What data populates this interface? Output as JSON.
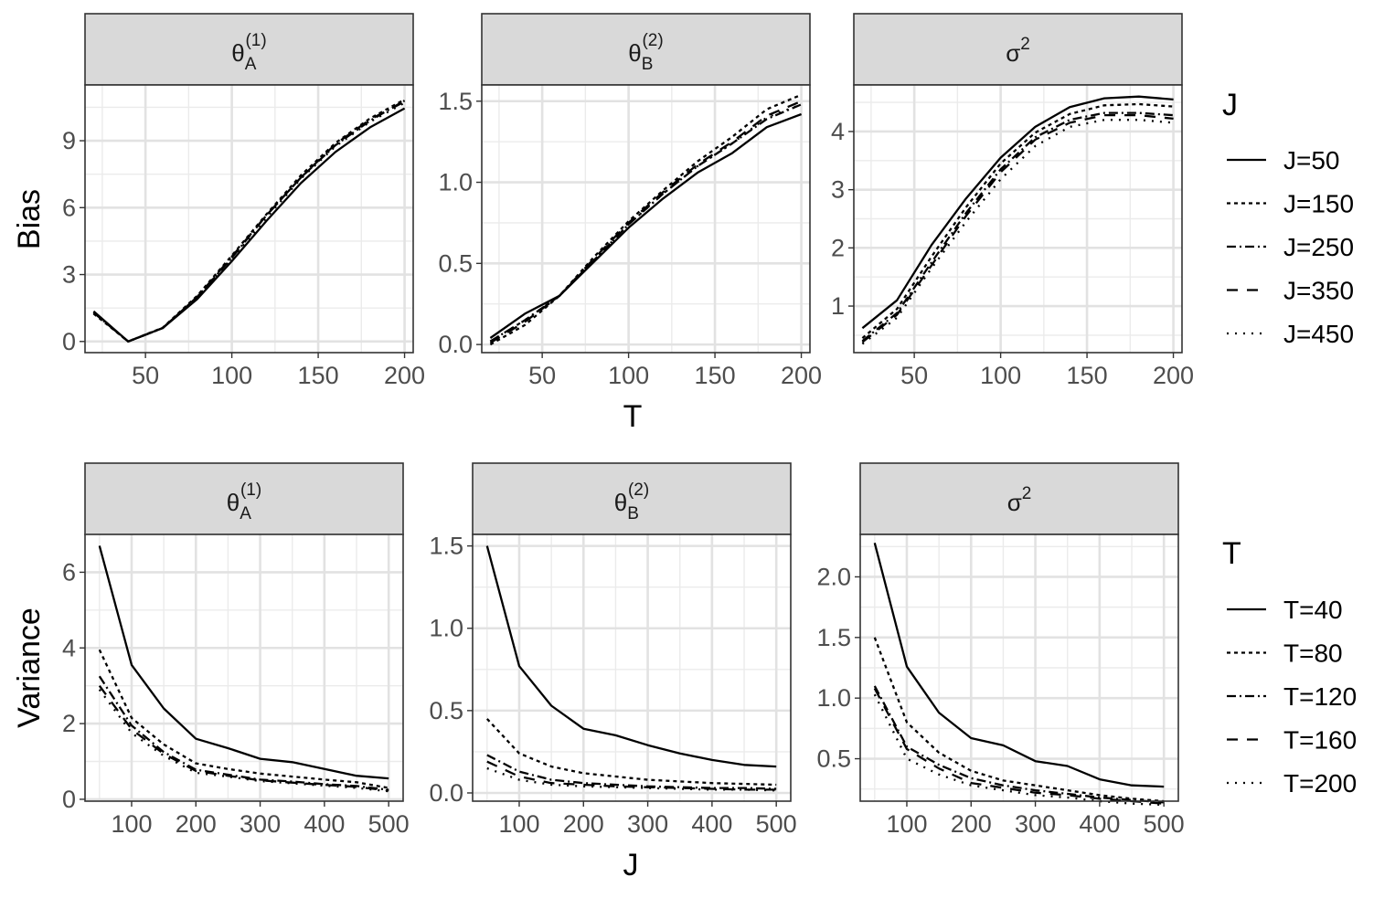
{
  "chart_data": [
    {
      "type": "line",
      "row_ylabel": "Bias",
      "xlabel": "T",
      "legend": {
        "title": "J",
        "placement": "right",
        "entries": [
          "J=50",
          "J=150",
          "J=250",
          "J=350",
          "J=450"
        ]
      },
      "grid": true,
      "panels": [
        {
          "strip": {
            "base": "θ",
            "sub": "A",
            "sup": "(1)"
          },
          "x": [
            20,
            40,
            60,
            80,
            100,
            120,
            140,
            160,
            180,
            200
          ],
          "xlim": [
            15,
            205
          ],
          "xticks": [
            "50",
            "100",
            "150",
            "200"
          ],
          "xtick_values": [
            50,
            100,
            150,
            200
          ],
          "ylim": [
            -0.5,
            11.5
          ],
          "yticks": [
            "0",
            "3",
            "6",
            "9"
          ],
          "ytick_values": [
            0,
            3,
            6,
            9
          ],
          "series": [
            {
              "name": "J=50",
              "values": [
                1.35,
                0.0,
                0.6,
                1.9,
                3.6,
                5.4,
                7.1,
                8.5,
                9.6,
                10.45
              ]
            },
            {
              "name": "J=150",
              "values": [
                1.25,
                0.0,
                0.62,
                2.05,
                3.85,
                5.7,
                7.45,
                8.9,
                10.0,
                10.85
              ]
            },
            {
              "name": "J=250",
              "values": [
                1.3,
                0.0,
                0.6,
                2.0,
                3.75,
                5.65,
                7.35,
                8.8,
                9.9,
                10.8
              ]
            },
            {
              "name": "J=350",
              "values": [
                1.3,
                0.0,
                0.6,
                2.0,
                3.8,
                5.65,
                7.35,
                8.85,
                9.95,
                10.75
              ]
            },
            {
              "name": "J=450",
              "values": [
                1.3,
                0.0,
                0.6,
                1.95,
                3.7,
                5.55,
                7.3,
                8.75,
                9.85,
                10.7
              ]
            }
          ]
        },
        {
          "strip": {
            "base": "θ",
            "sub": "B",
            "sup": "(2)"
          },
          "x": [
            20,
            40,
            60,
            80,
            100,
            120,
            140,
            160,
            180,
            200
          ],
          "xlim": [
            15,
            205
          ],
          "xticks": [
            "50",
            "100",
            "150",
            "200"
          ],
          "xtick_values": [
            50,
            100,
            150,
            200
          ],
          "ylim": [
            -0.05,
            1.6
          ],
          "yticks": [
            "0.0",
            "0.5",
            "1.0",
            "1.5"
          ],
          "ytick_values": [
            0,
            0.5,
            1.0,
            1.5
          ],
          "series": [
            {
              "name": "J=50",
              "values": [
                0.04,
                0.19,
                0.3,
                0.51,
                0.72,
                0.9,
                1.06,
                1.18,
                1.34,
                1.42
              ]
            },
            {
              "name": "J=150",
              "values": [
                0.0,
                0.12,
                0.3,
                0.54,
                0.76,
                0.95,
                1.13,
                1.28,
                1.45,
                1.54
              ]
            },
            {
              "name": "J=250",
              "values": [
                0.02,
                0.15,
                0.3,
                0.52,
                0.74,
                0.93,
                1.1,
                1.24,
                1.39,
                1.48
              ]
            },
            {
              "name": "J=350",
              "values": [
                0.01,
                0.14,
                0.3,
                0.53,
                0.75,
                0.94,
                1.11,
                1.25,
                1.41,
                1.5
              ]
            },
            {
              "name": "J=450",
              "values": [
                0.02,
                0.15,
                0.3,
                0.52,
                0.74,
                0.93,
                1.1,
                1.24,
                1.4,
                1.48
              ]
            }
          ]
        },
        {
          "strip": {
            "base": "σ",
            "sub": "",
            "sup": "2"
          },
          "x": [
            20,
            40,
            60,
            80,
            100,
            120,
            140,
            160,
            180,
            200
          ],
          "xlim": [
            15,
            205
          ],
          "xticks": [
            "50",
            "100",
            "150",
            "200"
          ],
          "xtick_values": [
            50,
            100,
            150,
            200
          ],
          "ylim": [
            0.2,
            4.8
          ],
          "yticks": [
            "1",
            "2",
            "3",
            "4"
          ],
          "ytick_values": [
            1,
            2,
            3,
            4
          ],
          "series": [
            {
              "name": "J=50",
              "values": [
                0.62,
                1.1,
                2.05,
                2.85,
                3.55,
                4.08,
                4.42,
                4.57,
                4.6,
                4.55
              ]
            },
            {
              "name": "J=150",
              "values": [
                0.45,
                0.95,
                1.85,
                2.7,
                3.45,
                3.98,
                4.3,
                4.45,
                4.47,
                4.43
              ]
            },
            {
              "name": "J=250",
              "values": [
                0.4,
                0.88,
                1.75,
                2.6,
                3.35,
                3.9,
                4.2,
                4.32,
                4.32,
                4.28
              ]
            },
            {
              "name": "J=350",
              "values": [
                0.38,
                0.85,
                1.7,
                2.55,
                3.3,
                3.86,
                4.15,
                4.28,
                4.28,
                4.22
              ]
            },
            {
              "name": "J=450",
              "values": [
                0.35,
                0.8,
                1.65,
                2.45,
                3.18,
                3.75,
                4.08,
                4.2,
                4.2,
                4.15
              ]
            }
          ]
        }
      ]
    },
    {
      "type": "line",
      "row_ylabel": "Variance",
      "xlabel": "J",
      "legend": {
        "title": "T",
        "placement": "right",
        "entries": [
          "T=40",
          "T=80",
          "T=120",
          "T=160",
          "T=200"
        ]
      },
      "grid": true,
      "panels": [
        {
          "strip": {
            "base": "θ",
            "sub": "A",
            "sup": "(1)"
          },
          "x": [
            50,
            100,
            150,
            200,
            250,
            300,
            350,
            400,
            450,
            500
          ],
          "xlim": [
            27.5,
            522.5
          ],
          "xticks": [
            "100",
            "200",
            "300",
            "400",
            "500"
          ],
          "xtick_values": [
            100,
            200,
            300,
            400,
            500
          ],
          "ylim": [
            -0.05,
            7.0
          ],
          "yticks": [
            "0",
            "2",
            "4",
            "6"
          ],
          "ytick_values": [
            0,
            2,
            4,
            6
          ],
          "series": [
            {
              "name": "T=40",
              "values": [
                6.7,
                3.55,
                2.4,
                1.6,
                1.35,
                1.07,
                0.98,
                0.8,
                0.62,
                0.55
              ]
            },
            {
              "name": "T=80",
              "values": [
                3.95,
                2.15,
                1.45,
                0.95,
                0.8,
                0.68,
                0.6,
                0.52,
                0.45,
                0.3
              ]
            },
            {
              "name": "T=120",
              "values": [
                3.25,
                1.95,
                1.25,
                0.78,
                0.65,
                0.52,
                0.47,
                0.4,
                0.35,
                0.25
              ]
            },
            {
              "name": "T=160",
              "values": [
                3.0,
                1.85,
                1.2,
                0.75,
                0.62,
                0.5,
                0.44,
                0.38,
                0.33,
                0.23
              ]
            },
            {
              "name": "T=200",
              "values": [
                2.9,
                1.75,
                1.15,
                0.7,
                0.6,
                0.48,
                0.42,
                0.36,
                0.3,
                0.21
              ]
            }
          ]
        },
        {
          "strip": {
            "base": "θ",
            "sub": "B",
            "sup": "(2)"
          },
          "x": [
            50,
            100,
            150,
            200,
            250,
            300,
            350,
            400,
            450,
            500
          ],
          "xlim": [
            27.5,
            522.5
          ],
          "xticks": [
            "100",
            "200",
            "300",
            "400",
            "500"
          ],
          "xtick_values": [
            100,
            200,
            300,
            400,
            500
          ],
          "ylim": [
            -0.05,
            1.57
          ],
          "yticks": [
            "0.0",
            "0.5",
            "1.0",
            "1.5"
          ],
          "ytick_values": [
            0,
            0.5,
            1.0,
            1.5
          ],
          "series": [
            {
              "name": "T=40",
              "values": [
                1.5,
                0.77,
                0.53,
                0.39,
                0.35,
                0.29,
                0.24,
                0.2,
                0.17,
                0.16
              ]
            },
            {
              "name": "T=80",
              "values": [
                0.45,
                0.24,
                0.16,
                0.12,
                0.1,
                0.08,
                0.07,
                0.06,
                0.055,
                0.05
              ]
            },
            {
              "name": "T=120",
              "values": [
                0.23,
                0.13,
                0.08,
                0.06,
                0.05,
                0.04,
                0.035,
                0.03,
                0.03,
                0.025
              ]
            },
            {
              "name": "T=160",
              "values": [
                0.19,
                0.1,
                0.06,
                0.05,
                0.04,
                0.035,
                0.03,
                0.025,
                0.02,
                0.02
              ]
            },
            {
              "name": "T=200",
              "values": [
                0.15,
                0.08,
                0.05,
                0.04,
                0.035,
                0.03,
                0.025,
                0.02,
                0.02,
                0.015
              ]
            }
          ]
        },
        {
          "strip": {
            "base": "σ",
            "sub": "",
            "sup": "2"
          },
          "x": [
            50,
            100,
            150,
            200,
            250,
            300,
            350,
            400,
            450,
            500
          ],
          "xlim": [
            27.5,
            522.5
          ],
          "xticks": [
            "100",
            "200",
            "300",
            "400",
            "500"
          ],
          "xtick_values": [
            100,
            200,
            300,
            400,
            500
          ],
          "ylim": [
            0.15,
            2.35
          ],
          "yticks": [
            "0.5",
            "1.0",
            "1.5",
            "2.0"
          ],
          "ytick_values": [
            0.5,
            1.0,
            1.5,
            2.0
          ],
          "series": [
            {
              "name": "T=40",
              "values": [
                2.28,
                1.26,
                0.88,
                0.67,
                0.61,
                0.48,
                0.44,
                0.33,
                0.28,
                0.27
              ]
            },
            {
              "name": "T=80",
              "values": [
                1.5,
                0.8,
                0.55,
                0.4,
                0.32,
                0.28,
                0.24,
                0.2,
                0.17,
                0.15
              ]
            },
            {
              "name": "T=120",
              "values": [
                1.1,
                0.6,
                0.45,
                0.34,
                0.28,
                0.24,
                0.21,
                0.18,
                0.16,
                0.14
              ]
            },
            {
              "name": "T=160",
              "values": [
                1.08,
                0.58,
                0.42,
                0.3,
                0.26,
                0.22,
                0.2,
                0.17,
                0.15,
                0.13
              ]
            },
            {
              "name": "T=200",
              "values": [
                1.03,
                0.5,
                0.37,
                0.28,
                0.24,
                0.2,
                0.18,
                0.15,
                0.13,
                0.12
              ]
            }
          ]
        }
      ]
    }
  ],
  "line_styles": [
    "",
    "4 4",
    "10 4 2 4",
    "12 10",
    "2 7"
  ]
}
